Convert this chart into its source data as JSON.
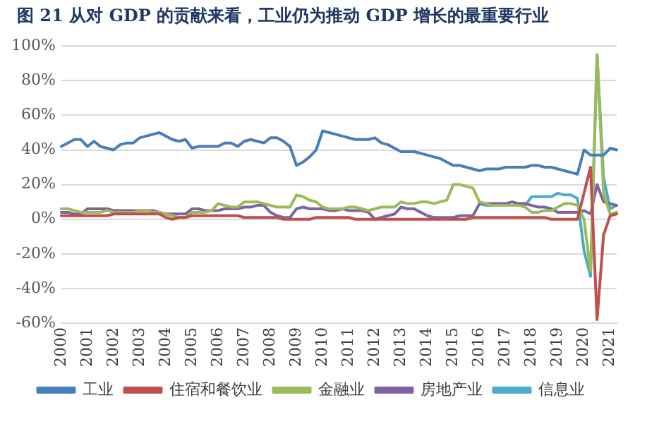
{
  "chart_data": {
    "type": "line",
    "title": "图 21 从对 GDP 的贡献来看，工业仍为推动 GDP 增长的最重要行业",
    "categories": [
      "2000",
      null,
      null,
      null,
      "2001",
      null,
      null,
      null,
      "2002",
      null,
      null,
      null,
      "2003",
      null,
      null,
      null,
      "2004",
      null,
      null,
      null,
      "2005",
      null,
      null,
      null,
      "2006",
      null,
      null,
      null,
      "2007",
      null,
      null,
      null,
      "2008",
      null,
      null,
      null,
      "2009",
      null,
      null,
      null,
      "2010",
      null,
      null,
      null,
      "2011",
      null,
      null,
      null,
      "2012",
      null,
      null,
      null,
      "2013",
      null,
      null,
      null,
      "2014",
      null,
      null,
      null,
      "2015",
      null,
      null,
      null,
      "2016",
      null,
      null,
      null,
      "2017",
      null,
      null,
      null,
      "2018",
      null,
      null,
      null,
      "2019",
      null,
      null,
      null,
      "2020",
      null,
      null,
      null,
      "2021",
      null
    ],
    "series": [
      {
        "name": "工业",
        "color": "#4a7ebb",
        "values": [
          42,
          44,
          46,
          46,
          42,
          45,
          42,
          41,
          40,
          43,
          44,
          44,
          47,
          48,
          49,
          50,
          48,
          46,
          45,
          46,
          41,
          42,
          42,
          42,
          42,
          44,
          44,
          42,
          45,
          46,
          45,
          44,
          47,
          47,
          45,
          42,
          31,
          33,
          36,
          40,
          51,
          50,
          49,
          48,
          47,
          46,
          46,
          46,
          47,
          44,
          43,
          41,
          39,
          39,
          39,
          38,
          37,
          36,
          35,
          33,
          31,
          31,
          30,
          29,
          28,
          29,
          29,
          29,
          30,
          30,
          30,
          30,
          31,
          31,
          30,
          30,
          29,
          28,
          27,
          26,
          40,
          37,
          37,
          37,
          41,
          40
        ]
      },
      {
        "name": "住宿和餐饮业",
        "color": "#c0504d",
        "values": [
          2,
          2,
          2,
          2,
          2,
          2,
          2,
          2,
          3,
          3,
          3,
          3,
          3,
          3,
          3,
          3,
          1,
          0,
          1,
          1,
          2,
          2,
          2,
          2,
          2,
          2,
          2,
          2,
          1,
          1,
          1,
          1,
          1,
          1,
          0,
          0,
          0,
          0,
          0,
          1,
          1,
          1,
          1,
          1,
          1,
          0,
          0,
          0,
          0,
          0,
          0,
          0,
          0,
          0,
          0,
          0,
          0,
          0,
          0,
          0,
          0,
          0,
          0,
          1,
          1,
          1,
          1,
          1,
          1,
          1,
          1,
          1,
          1,
          1,
          1,
          0,
          0,
          0,
          0,
          0,
          15,
          30,
          -58,
          -9,
          2,
          3
        ]
      },
      {
        "name": "金融业",
        "color": "#9bbb59",
        "values": [
          6,
          6,
          5,
          4,
          4,
          4,
          4,
          5,
          4,
          4,
          4,
          4,
          5,
          5,
          4,
          4,
          3,
          2,
          1,
          1,
          4,
          4,
          4,
          5,
          9,
          8,
          7,
          7,
          10,
          10,
          10,
          9,
          8,
          7,
          7,
          7,
          14,
          13,
          11,
          10,
          7,
          6,
          6,
          6,
          7,
          7,
          6,
          5,
          6,
          7,
          7,
          7,
          10,
          9,
          9,
          10,
          10,
          9,
          10,
          11,
          20,
          20,
          19,
          18,
          10,
          9,
          8,
          8,
          8,
          8,
          8,
          7,
          4,
          4,
          5,
          5,
          7,
          9,
          9,
          8,
          0,
          -30,
          95,
          15,
          3,
          4
        ]
      },
      {
        "name": "房地产业",
        "color": "#8064a2",
        "values": [
          4,
          4,
          3,
          3,
          6,
          6,
          6,
          6,
          5,
          5,
          5,
          5,
          5,
          5,
          5,
          4,
          3,
          3,
          3,
          3,
          6,
          6,
          5,
          5,
          5,
          6,
          6,
          6,
          7,
          7,
          8,
          8,
          4,
          2,
          1,
          1,
          6,
          7,
          6,
          6,
          6,
          5,
          5,
          6,
          5,
          5,
          5,
          4,
          0,
          1,
          2,
          3,
          7,
          6,
          6,
          4,
          2,
          1,
          1,
          1,
          1,
          2,
          2,
          2,
          9,
          9,
          9,
          9,
          9,
          10,
          9,
          9,
          8,
          7,
          7,
          6,
          4,
          4,
          4,
          4,
          5,
          3,
          20,
          10,
          9,
          8
        ]
      },
      {
        "name": "信息业",
        "color": "#4bacc6",
        "values": [
          null,
          null,
          null,
          null,
          null,
          null,
          null,
          null,
          null,
          null,
          null,
          null,
          null,
          null,
          null,
          null,
          null,
          null,
          null,
          null,
          null,
          null,
          null,
          null,
          null,
          null,
          null,
          null,
          null,
          null,
          null,
          null,
          null,
          null,
          null,
          null,
          null,
          null,
          null,
          null,
          null,
          null,
          null,
          null,
          null,
          null,
          null,
          null,
          null,
          null,
          null,
          null,
          null,
          null,
          null,
          null,
          null,
          null,
          null,
          null,
          null,
          null,
          null,
          null,
          9,
          8,
          8,
          8,
          8,
          8,
          8,
          8,
          13,
          13,
          13,
          13,
          15,
          14,
          14,
          12,
          -18,
          -33,
          95,
          24,
          6,
          8
        ]
      }
    ],
    "ylim": [
      -60,
      100
    ],
    "yticks": [
      {
        "value": -60,
        "label": "-60%"
      },
      {
        "value": -40,
        "label": "-40%"
      },
      {
        "value": -20,
        "label": "-20%"
      },
      {
        "value": 0,
        "label": "0%"
      },
      {
        "value": 20,
        "label": "20%"
      },
      {
        "value": 40,
        "label": "40%"
      },
      {
        "value": 60,
        "label": "60%"
      },
      {
        "value": 80,
        "label": "80%"
      },
      {
        "value": 100,
        "label": "100%"
      }
    ],
    "grid": "y",
    "legend": "bottom",
    "marker": "none",
    "line_style": "solid"
  }
}
